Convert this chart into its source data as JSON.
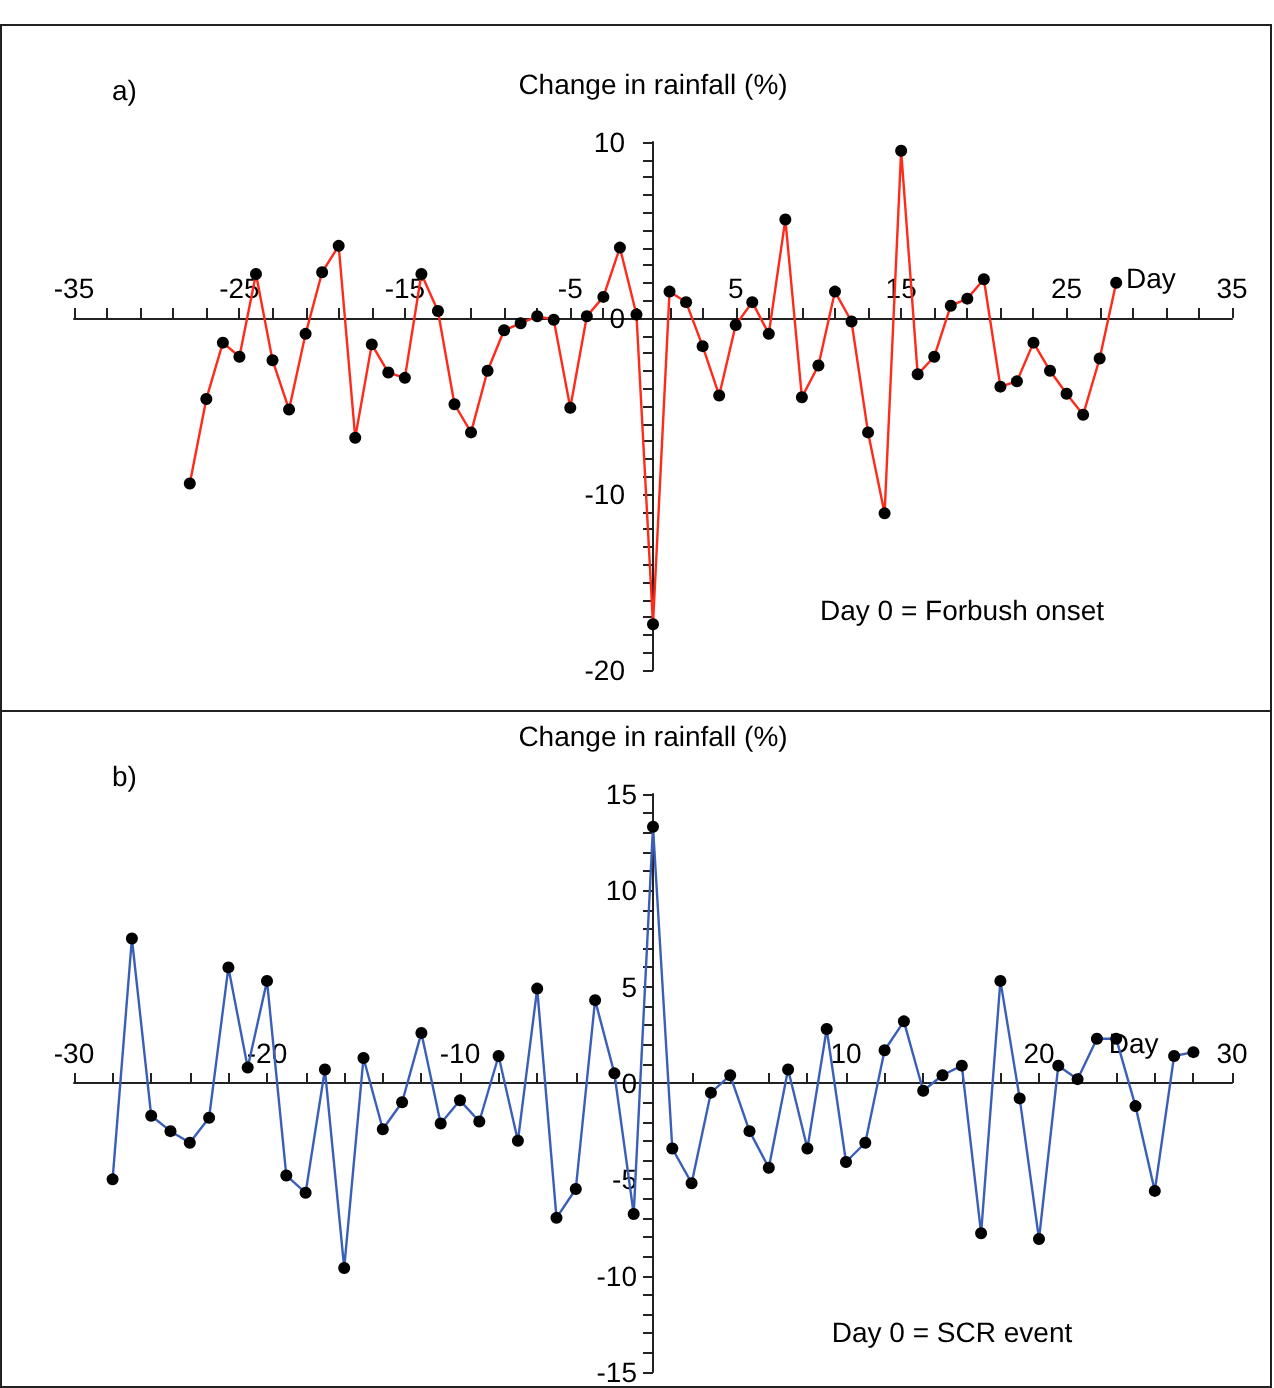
{
  "chart_data": [
    {
      "type": "line",
      "title": "a)",
      "ylabel": "Change in rainfall (%)",
      "xlabel": "Day",
      "annotations": [
        "Day 0 = Forbush onset"
      ],
      "marker": "circle",
      "grid": false,
      "x": [
        -28,
        -27,
        -26,
        -25,
        -24,
        -23,
        -22,
        -21,
        -20,
        -19,
        -18,
        -17,
        -16,
        -15,
        -14,
        -13,
        -12,
        -11,
        -10,
        -9,
        -8,
        -7,
        -6,
        -5,
        -4,
        -3,
        -2,
        -1,
        0,
        1,
        2,
        3,
        4,
        5,
        6,
        7,
        8,
        9,
        10,
        11,
        12,
        13,
        14,
        15,
        16,
        17,
        18,
        19,
        20,
        21,
        22,
        23,
        24,
        25,
        26,
        27,
        28
      ],
      "series": [
        {
          "color": "#ff2a1a",
          "values": [
            -9.4,
            -4.6,
            -1.4,
            -2.2,
            2.5,
            -2.4,
            -5.2,
            -0.9,
            2.6,
            4.1,
            -6.8,
            -1.5,
            -3.1,
            -3.4,
            2.5,
            0.4,
            -4.9,
            -6.5,
            -3.0,
            -0.7,
            -0.3,
            0.1,
            -0.1,
            -5.1,
            0.1,
            1.2,
            4.0,
            0.2,
            -17.4,
            1.5,
            0.9,
            -1.6,
            -4.4,
            -0.4,
            0.9,
            -0.9,
            5.6,
            -4.5,
            -2.7,
            1.5,
            -0.2,
            -6.5,
            -11.1,
            9.5,
            -3.2,
            -2.2,
            0.7,
            1.1,
            2.2,
            -3.9,
            -3.6,
            -1.4,
            -3.0,
            -4.3,
            -5.5,
            -2.3,
            2.0
          ]
        }
      ],
      "xlim": [
        -35,
        35
      ],
      "xticks": [
        -35,
        {
          "value": -33,
          "label": null
        },
        {
          "value": -31,
          "label": null
        },
        {
          "value": -29,
          "label": null
        },
        {
          "value": -27,
          "label": null
        },
        -25,
        {
          "value": -23,
          "label": null
        },
        {
          "value": -21,
          "label": null
        },
        {
          "value": -19,
          "label": null
        },
        {
          "value": -17,
          "label": null
        },
        -15,
        {
          "value": -13,
          "label": null
        },
        {
          "value": -11,
          "label": null
        },
        {
          "value": -9,
          "label": null
        },
        {
          "value": -7,
          "label": null
        },
        -5,
        {
          "value": -3,
          "label": null
        },
        {
          "value": -1,
          "label": null
        },
        {
          "value": 1,
          "label": null
        },
        {
          "value": 3,
          "label": null
        },
        5,
        {
          "value": 7,
          "label": null
        },
        {
          "value": 9,
          "label": null
        },
        {
          "value": 11,
          "label": null
        },
        {
          "value": 13,
          "label": null
        },
        15,
        {
          "value": 17,
          "label": null
        },
        {
          "value": 19,
          "label": null
        },
        {
          "value": 21,
          "label": null
        },
        {
          "value": 23,
          "label": null
        },
        25,
        {
          "value": 27,
          "label": null
        },
        {
          "value": 29,
          "label": null
        },
        {
          "value": 31,
          "label": null
        },
        {
          "value": 33,
          "label": null
        },
        35
      ],
      "ylim": [
        -20,
        10
      ],
      "yticks": [
        -20,
        {
          "value": -19,
          "label": null
        },
        {
          "value": -18,
          "label": null
        },
        {
          "value": -17,
          "label": null
        },
        {
          "value": -16,
          "label": null
        },
        {
          "value": -15,
          "label": null
        },
        {
          "value": -14,
          "label": null
        },
        {
          "value": -13,
          "label": null
        },
        {
          "value": -12,
          "label": null
        },
        {
          "value": -11,
          "label": null
        },
        -10,
        {
          "value": -9,
          "label": null
        },
        {
          "value": -8,
          "label": null
        },
        {
          "value": -7,
          "label": null
        },
        {
          "value": -6,
          "label": null
        },
        {
          "value": -5,
          "label": null
        },
        {
          "value": -4,
          "label": null
        },
        {
          "value": -3,
          "label": null
        },
        {
          "value": -2,
          "label": null
        },
        {
          "value": -1,
          "label": null
        },
        0,
        {
          "value": 1,
          "label": null
        },
        {
          "value": 2,
          "label": null
        },
        {
          "value": 3,
          "label": null
        },
        {
          "value": 4,
          "label": null
        },
        {
          "value": 5,
          "label": null
        },
        {
          "value": 6,
          "label": null
        },
        {
          "value": 7,
          "label": null
        },
        {
          "value": 8,
          "label": null
        },
        {
          "value": 9,
          "label": null
        },
        10
      ]
    },
    {
      "type": "line",
      "title": "b)",
      "ylabel": "Change in rainfall (%)",
      "xlabel": "Day",
      "annotations": [
        "Day 0 = SCR event"
      ],
      "marker": "circle",
      "grid": false,
      "x": [
        -28,
        -27,
        -26,
        -25,
        -24,
        -23,
        -22,
        -21,
        -20,
        -19,
        -18,
        -17,
        -16,
        -15,
        -14,
        -13,
        -12,
        -11,
        -10,
        -9,
        -8,
        -7,
        -6,
        -5,
        -4,
        -3,
        -2,
        -1,
        0,
        1,
        2,
        3,
        4,
        5,
        6,
        7,
        8,
        9,
        10,
        11,
        12,
        13,
        14,
        15,
        16,
        17,
        18,
        19,
        20,
        21,
        22,
        23,
        24,
        25,
        26,
        27,
        28
      ],
      "series": [
        {
          "color": "#3a5fb8",
          "values": [
            -5.0,
            7.5,
            -1.7,
            -2.5,
            -3.1,
            -1.8,
            6.0,
            0.8,
            5.3,
            -4.8,
            -5.7,
            0.7,
            -9.6,
            1.3,
            -2.4,
            -1.0,
            2.6,
            -2.1,
            -0.9,
            -2.0,
            1.4,
            -3.0,
            4.9,
            -7.0,
            -5.5,
            4.3,
            0.5,
            -6.8,
            13.3,
            -3.4,
            -5.2,
            -0.5,
            0.4,
            -2.5,
            -4.4,
            0.7,
            -3.4,
            2.8,
            -4.1,
            -3.1,
            1.7,
            3.2,
            -0.4,
            0.4,
            0.9,
            -7.8,
            5.3,
            -0.8,
            -8.1,
            0.9,
            0.2,
            2.3,
            2.3,
            -1.2,
            -5.6,
            1.4,
            1.6
          ]
        }
      ],
      "xlim": [
        -30,
        30
      ],
      "xticks": [
        -30,
        {
          "value": -28,
          "label": null
        },
        {
          "value": -26,
          "label": null
        },
        {
          "value": -24,
          "label": null
        },
        {
          "value": -22,
          "label": null
        },
        -20,
        {
          "value": -18,
          "label": null
        },
        {
          "value": -16,
          "label": null
        },
        {
          "value": -14,
          "label": null
        },
        {
          "value": -12,
          "label": null
        },
        -10,
        {
          "value": -8,
          "label": null
        },
        {
          "value": -6,
          "label": null
        },
        {
          "value": -4,
          "label": null
        },
        {
          "value": -2,
          "label": null
        },
        {
          "value": 2,
          "label": null
        },
        {
          "value": 4,
          "label": null
        },
        {
          "value": 6,
          "label": null
        },
        {
          "value": 8,
          "label": null
        },
        10,
        {
          "value": 12,
          "label": null
        },
        {
          "value": 14,
          "label": null
        },
        {
          "value": 16,
          "label": null
        },
        {
          "value": 18,
          "label": null
        },
        20,
        {
          "value": 22,
          "label": null
        },
        {
          "value": 24,
          "label": null
        },
        {
          "value": 26,
          "label": null
        },
        {
          "value": 28,
          "label": null
        },
        30
      ],
      "ylim": [
        -15,
        15
      ],
      "yticks": [
        -15,
        {
          "value": -14,
          "label": null
        },
        {
          "value": -13,
          "label": null
        },
        {
          "value": -12,
          "label": null
        },
        {
          "value": -11,
          "label": null
        },
        -10,
        {
          "value": -9,
          "label": null
        },
        {
          "value": -8,
          "label": null
        },
        {
          "value": -7,
          "label": null
        },
        {
          "value": -6,
          "label": null
        },
        -5,
        {
          "value": -4,
          "label": null
        },
        {
          "value": -3,
          "label": null
        },
        {
          "value": -2,
          "label": null
        },
        {
          "value": -1,
          "label": null
        },
        0,
        {
          "value": 1,
          "label": null
        },
        {
          "value": 2,
          "label": null
        },
        {
          "value": 3,
          "label": null
        },
        {
          "value": 4,
          "label": null
        },
        5,
        {
          "value": 6,
          "label": null
        },
        {
          "value": 7,
          "label": null
        },
        {
          "value": 8,
          "label": null
        },
        {
          "value": 9,
          "label": null
        },
        10,
        {
          "value": 11,
          "label": null
        },
        {
          "value": 12,
          "label": null
        },
        {
          "value": 13,
          "label": null
        },
        {
          "value": 14,
          "label": null
        },
        15
      ]
    }
  ]
}
